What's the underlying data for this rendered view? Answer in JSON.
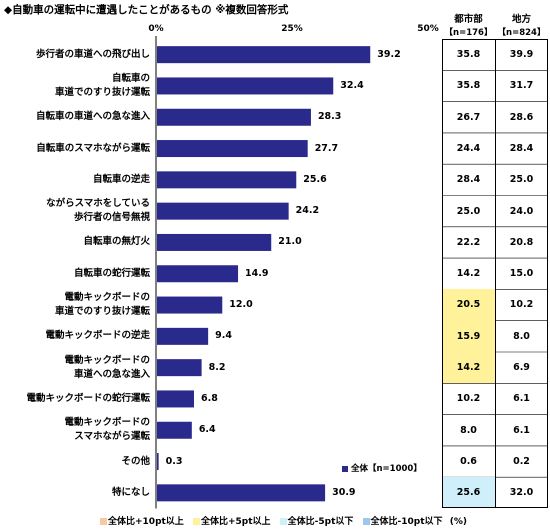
{
  "title": "◆自動車の運転中に遭遇したことがあるもの ※複数回答形式",
  "axis_ticks": [
    "0%",
    "25%",
    "50%"
  ],
  "table_headers": {
    "urban": "都市部",
    "urban_n": "【n=176】",
    "rural": "地方",
    "rural_n": "【n=824】"
  },
  "legend_label": "全体【n=1000】",
  "footer": {
    "items": [
      {
        "label": "全体比+10pt以上",
        "color": "#f7c9a0"
      },
      {
        "label": "全体比+5pt以上",
        "color": "#fff29a"
      },
      {
        "label": "全体比-5pt以下",
        "color": "#cfeffb"
      },
      {
        "label": "全体比-10pt以下",
        "color": "#9fc7ec"
      }
    ],
    "unit": "(%)"
  },
  "colors": {
    "bar": "#2a2a8c",
    "plus5": "#fff29a",
    "minus5": "#cfeffb"
  },
  "chart_data": {
    "type": "bar",
    "orientation": "horizontal",
    "title": "◆自動車の運転中に遭遇したことがあるもの ※複数回答形式",
    "xlim": [
      0,
      50
    ],
    "series": [
      {
        "name": "全体【n=1000】",
        "values": [
          39.2,
          32.4,
          28.3,
          27.7,
          25.6,
          24.2,
          21.0,
          14.9,
          12.0,
          9.4,
          8.2,
          6.8,
          6.4,
          0.3,
          30.9
        ]
      }
    ],
    "value_labels": [
      "39.2",
      "32.4",
      "28.3",
      "27.7",
      "25.6",
      "24.2",
      "21.0",
      "14.9",
      "12.0",
      "9.4",
      "8.2",
      "6.8",
      "6.4",
      "0.3",
      "30.9"
    ],
    "categories": [
      [
        "歩行者の車道への飛び出し"
      ],
      [
        "自転車の",
        "車道でのすり抜け運転"
      ],
      [
        "自転車の車道への急な進入"
      ],
      [
        "自転車のスマホながら運転"
      ],
      [
        "自転車の逆走"
      ],
      [
        "ながらスマホをしている",
        "歩行者の信号無視"
      ],
      [
        "自転車の無灯火"
      ],
      [
        "自転車の蛇行運転"
      ],
      [
        "電動キックボードの",
        "車道でのすり抜け運転"
      ],
      [
        "電動キックボードの逆走"
      ],
      [
        "電動キックボードの",
        "車道への急な進入"
      ],
      [
        "電動キックボードの蛇行運転"
      ],
      [
        "電動キックボードの",
        "スマホながら運転"
      ],
      [
        "その他"
      ],
      [
        "特になし"
      ]
    ],
    "table": {
      "urban": [
        "35.8",
        "35.8",
        "26.7",
        "24.4",
        "28.4",
        "25.0",
        "22.2",
        "14.2",
        "20.5",
        "15.9",
        "14.2",
        "10.2",
        "8.0",
        "0.6",
        "25.6"
      ],
      "rural": [
        "39.9",
        "31.7",
        "28.6",
        "28.4",
        "25.0",
        "24.0",
        "20.8",
        "15.0",
        "10.2",
        "8.0",
        "6.9",
        "6.1",
        "6.1",
        "0.2",
        "32.0"
      ],
      "urban_highlight": [
        "",
        "",
        "",
        "",
        "",
        "",
        "",
        "",
        "plus5",
        "plus5",
        "plus5",
        "",
        "",
        "",
        "minus5"
      ],
      "rural_highlight": [
        "",
        "",
        "",
        "",
        "",
        "",
        "",
        "",
        "",
        "",
        "",
        "",
        "",
        "",
        ""
      ]
    }
  }
}
